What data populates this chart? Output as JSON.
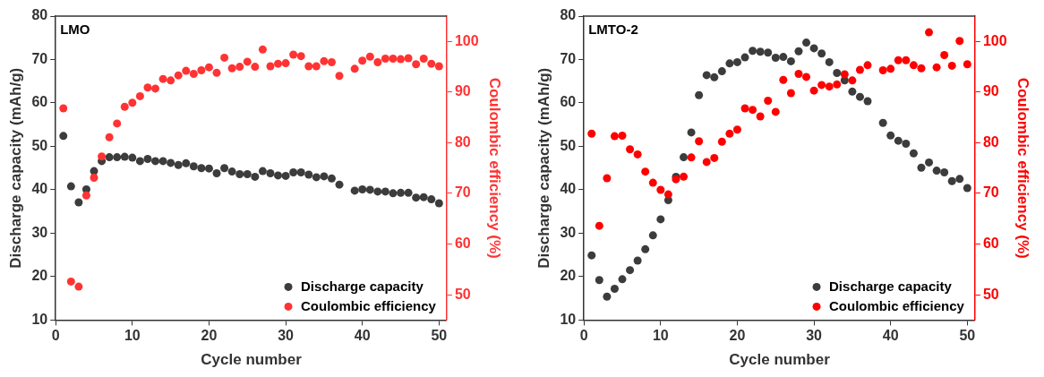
{
  "chart_data": [
    {
      "type": "scatter",
      "title": "LMO",
      "xlabel": "Cycle number",
      "ylabel": "Discharge capacity (mAh/g)",
      "y2label": "Coulombic efficiency (%)",
      "x": [
        1,
        2,
        3,
        4,
        5,
        6,
        7,
        8,
        9,
        10,
        11,
        12,
        13,
        14,
        15,
        16,
        17,
        18,
        19,
        20,
        21,
        22,
        23,
        24,
        25,
        26,
        27,
        28,
        29,
        30,
        31,
        32,
        33,
        34,
        35,
        36,
        37,
        39,
        40,
        41,
        42,
        43,
        44,
        45,
        46,
        47,
        48,
        49,
        50
      ],
      "xlim": [
        0,
        51
      ],
      "xticks": [
        0,
        10,
        20,
        30,
        40,
        50
      ],
      "ylim": [
        10,
        80
      ],
      "yticks": [
        10,
        20,
        30,
        40,
        50,
        60,
        70,
        80
      ],
      "y2lim": [
        45,
        105
      ],
      "y2ticks": [
        50,
        60,
        70,
        80,
        90,
        100
      ],
      "grid": false,
      "legend": "bottom right",
      "marker": "circle",
      "series": [
        {
          "name": "Discharge capacity",
          "color": "#3c3c3c",
          "values": [
            52.4,
            40.8,
            37.1,
            40.1,
            44.3,
            46.6,
            47.5,
            47.5,
            47.6,
            47.4,
            46.6,
            47.1,
            46.6,
            46.6,
            46.2,
            45.7,
            46.1,
            45.4,
            45.0,
            44.9,
            43.8,
            45.0,
            44.2,
            43.6,
            43.6,
            43.0,
            44.3,
            43.8,
            43.3,
            43.2,
            44.0,
            44.0,
            43.5,
            42.9,
            43.1,
            42.6,
            41.2,
            39.8,
            40.1,
            40.0,
            39.6,
            39.6,
            39.2,
            39.3,
            39.3,
            38.2,
            38.3,
            37.8,
            36.9
          ]
        },
        {
          "name": "Coulombic efficiency",
          "color": "#ff3333",
          "axis": "y2",
          "values": [
            86.8,
            52.6,
            51.6,
            69.6,
            73.1,
            77.3,
            81.1,
            83.8,
            87.1,
            87.9,
            89.2,
            90.9,
            90.7,
            92.6,
            92.3,
            93.3,
            94.2,
            93.6,
            94.3,
            94.9,
            93.8,
            96.8,
            94.7,
            95.0,
            96.0,
            95.0,
            98.4,
            95.1,
            95.6,
            95.7,
            97.4,
            97.1,
            95.1,
            95.1,
            96.1,
            95.9,
            93.2,
            94.6,
            96.2,
            97.0,
            95.9,
            96.6,
            96.6,
            96.5,
            96.7,
            95.5,
            96.6,
            95.6,
            95.1
          ]
        }
      ]
    },
    {
      "type": "scatter",
      "title": "LMTO-2",
      "xlabel": "Cycle number",
      "ylabel": "Discharge capacity (mAh/g)",
      "y2label": "Coulombic efficiency (%)",
      "x": [
        1,
        2,
        3,
        4,
        5,
        6,
        7,
        8,
        9,
        10,
        11,
        12,
        13,
        14,
        15,
        16,
        17,
        18,
        19,
        20,
        21,
        22,
        23,
        24,
        25,
        26,
        27,
        28,
        29,
        30,
        31,
        32,
        33,
        34,
        35,
        36,
        37,
        39,
        40,
        41,
        42,
        43,
        44,
        45,
        46,
        47,
        48,
        49,
        50
      ],
      "xlim": [
        0,
        51
      ],
      "xticks": [
        0,
        10,
        20,
        30,
        40,
        50
      ],
      "ylim": [
        10,
        80
      ],
      "yticks": [
        10,
        20,
        30,
        40,
        50,
        60,
        70,
        80
      ],
      "y2lim": [
        45,
        105
      ],
      "y2ticks": [
        50,
        60,
        70,
        80,
        90,
        100
      ],
      "grid": false,
      "legend": "bottom right",
      "marker": "circle",
      "series": [
        {
          "name": "Discharge capacity",
          "color": "#3c3c3c",
          "values": [
            24.9,
            19.2,
            15.4,
            17.2,
            19.4,
            21.5,
            23.7,
            26.3,
            29.5,
            33.2,
            37.6,
            43.0,
            47.5,
            53.2,
            61.8,
            66.4,
            65.9,
            67.3,
            69.1,
            69.4,
            70.5,
            72.0,
            71.8,
            71.6,
            70.4,
            70.6,
            69.6,
            71.9,
            73.9,
            72.6,
            71.4,
            69.4,
            66.9,
            65.2,
            62.6,
            61.4,
            60.4,
            55.4,
            52.5,
            51.3,
            50.6,
            48.4,
            45.1,
            46.3,
            44.4,
            44.0,
            42.0,
            42.5,
            40.4
          ]
        },
        {
          "name": "Coulombic efficiency",
          "color": "#ff0000",
          "axis": "y2",
          "values": [
            81.8,
            63.6,
            73.0,
            81.3,
            81.4,
            78.7,
            77.7,
            74.3,
            72.1,
            70.7,
            69.8,
            72.8,
            73.3,
            77.1,
            80.3,
            76.2,
            77.0,
            80.2,
            81.8,
            82.6,
            86.8,
            86.5,
            85.2,
            88.3,
            86.1,
            92.4,
            89.8,
            93.6,
            93.0,
            90.3,
            91.4,
            91.1,
            91.5,
            93.5,
            92.3,
            94.4,
            95.3,
            94.3,
            94.6,
            96.3,
            96.3,
            95.3,
            94.7,
            101.8,
            94.9,
            97.3,
            95.2,
            100.1,
            95.5
          ]
        }
      ]
    }
  ]
}
